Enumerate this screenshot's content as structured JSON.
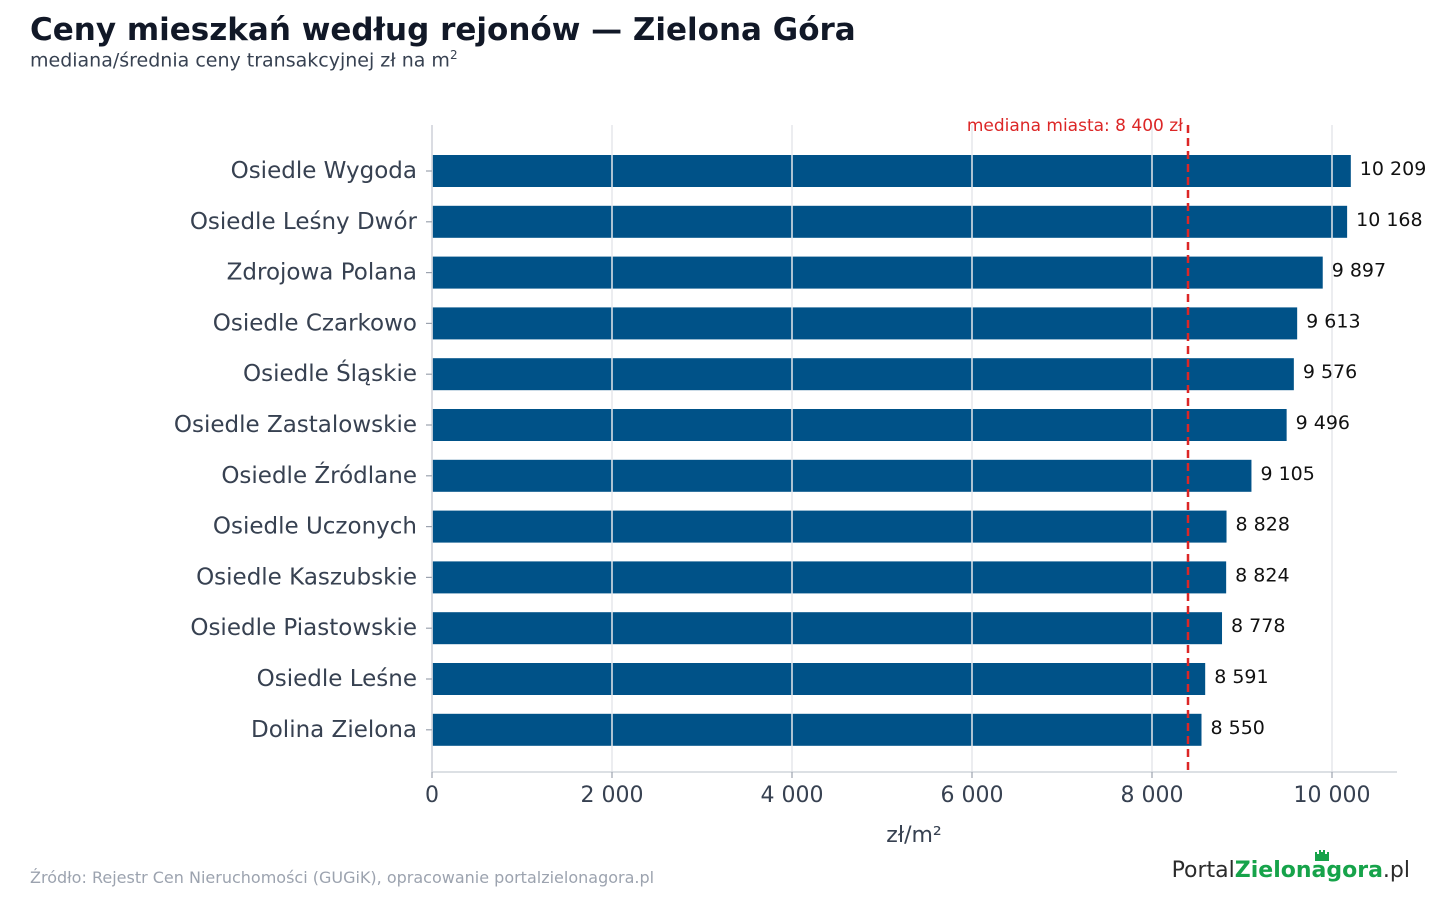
{
  "title": "Ceny mieszkań według rejonów — Zielona Góra",
  "subtitle_main": "mediana/średnia ceny transakcyjnej zł na m",
  "subtitle_sup": "2",
  "source": "Źródło: Rejestr Cen Nieruchomości (GUGiK), opracowanie portalzielonagora.pl",
  "logo": {
    "part1": "Portal",
    "part2": "Zielonagora",
    "part3": ".pl"
  },
  "chart_data": {
    "type": "bar",
    "orientation": "horizontal",
    "categories": [
      "Osiedle Wygoda",
      "Osiedle Leśny Dwór",
      "Zdrojowa Polana",
      "Osiedle Czarkowo",
      "Osiedle Śląskie",
      "Osiedle Zastalowskie",
      "Osiedle Źródlane",
      "Osiedle Uczonych",
      "Osiedle Kaszubskie",
      "Osiedle Piastowskie",
      "Osiedle Leśne",
      "Dolina Zielona"
    ],
    "values": [
      10209,
      10168,
      9897,
      9613,
      9576,
      9496,
      9105,
      8828,
      8824,
      8778,
      8591,
      8550
    ],
    "value_labels": [
      "10 209",
      "10 168",
      "9 897",
      "9 613",
      "9 576",
      "9 496",
      "9 105",
      "8 828",
      "8 824",
      "8 778",
      "8 591",
      "8 550"
    ],
    "xlabel": "zł/m²",
    "ylabel": "",
    "xlim": [
      0,
      10700
    ],
    "xticks": [
      0,
      2000,
      4000,
      6000,
      8000,
      10000
    ],
    "xtick_labels": [
      "0",
      "2 000",
      "4 000",
      "6 000",
      "8 000",
      "10 000"
    ],
    "grid": true,
    "bar_color": "#005288",
    "reference_line": {
      "value": 8400,
      "label": "mediana miasta: 8 400 zł",
      "color": "#dc2626",
      "style": "dashed"
    }
  }
}
